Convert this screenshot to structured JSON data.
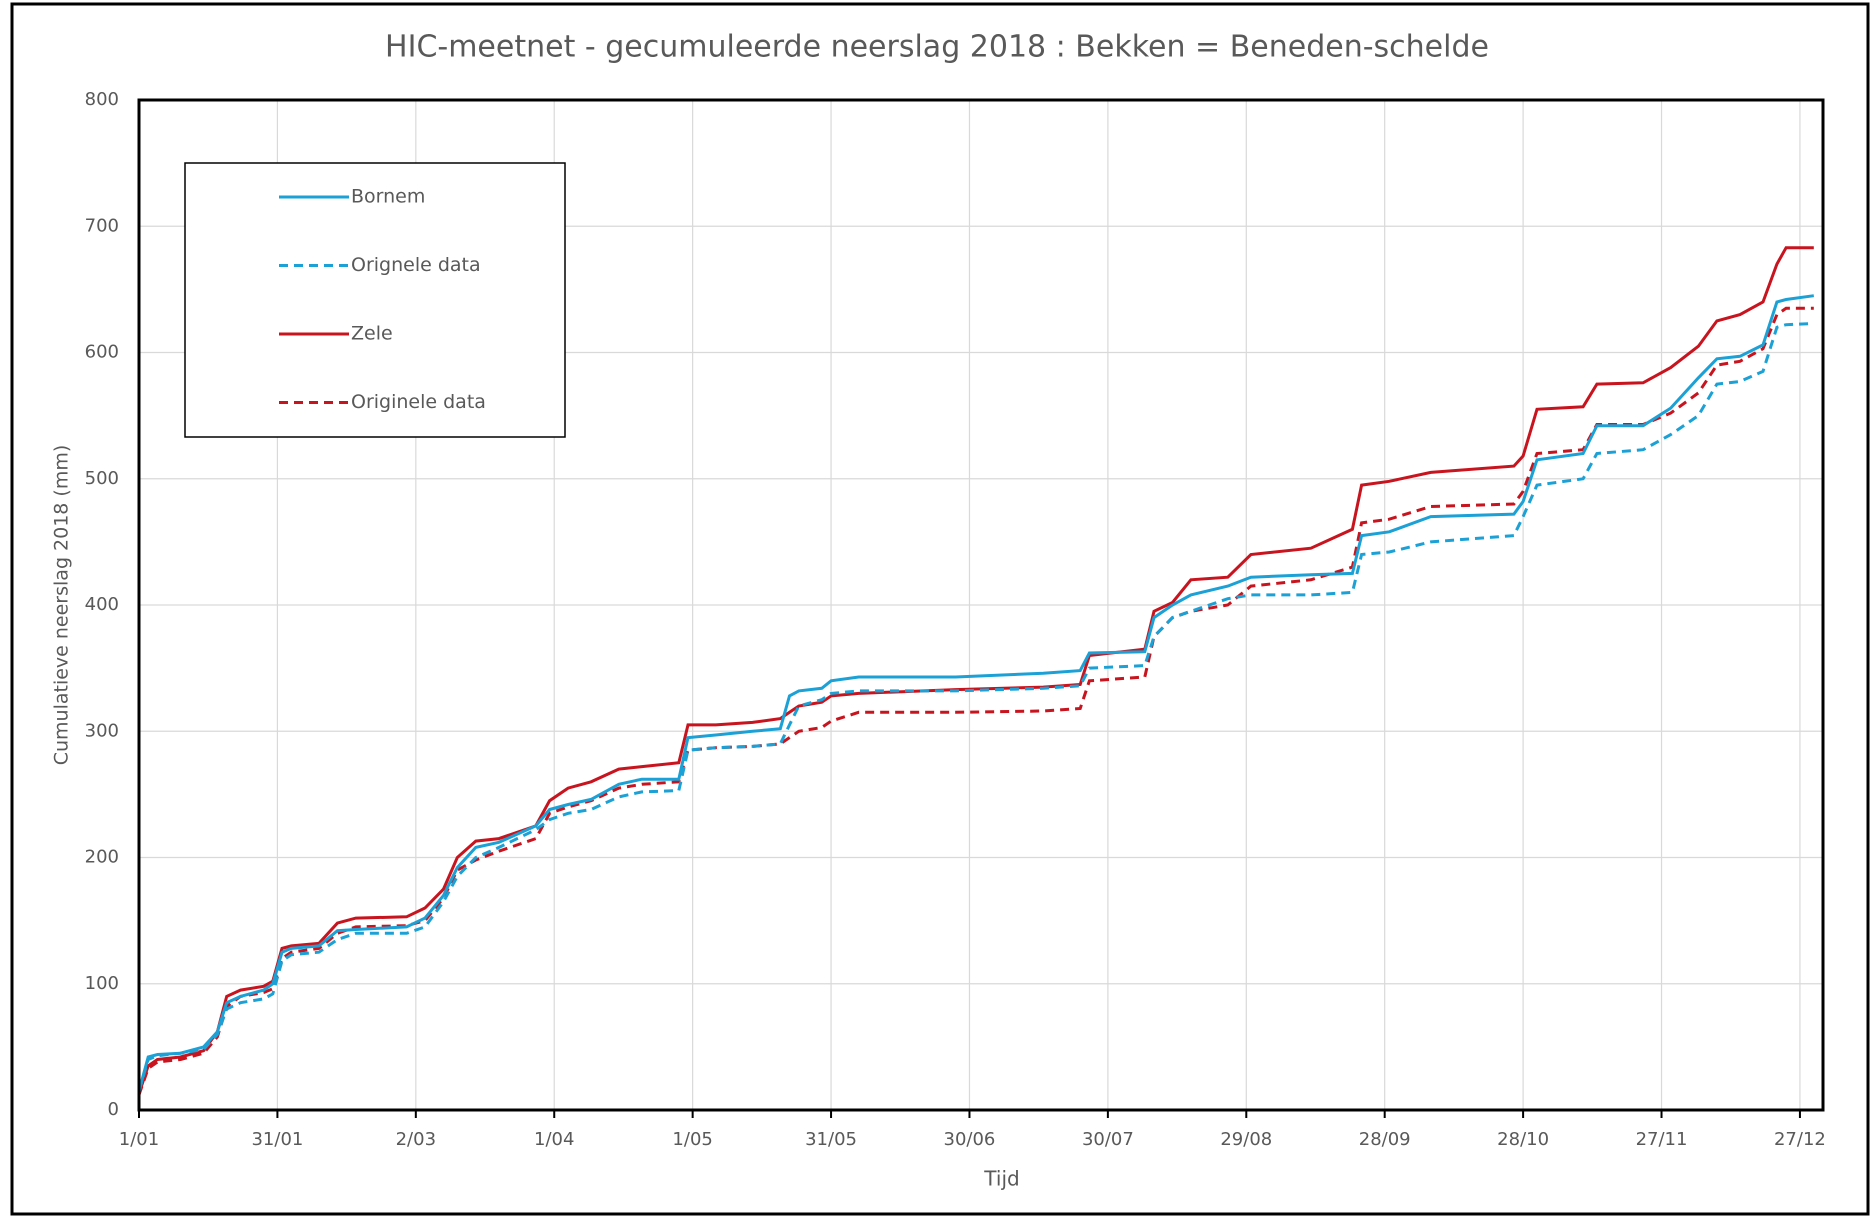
{
  "chart_data": {
    "type": "line",
    "title": "HIC-meetnet - gecumuleerde neerslag 2018 : Bekken = Beneden-schelde",
    "x_label": "Tijd",
    "y_label": "Cumulatieve neerslag 2018 (mm)",
    "xlim": [
      0,
      365
    ],
    "xticks": [
      {
        "value": 0,
        "label": "1/01"
      },
      {
        "value": 30,
        "label": "31/01"
      },
      {
        "value": 60,
        "label": "2/03"
      },
      {
        "value": 90,
        "label": "1/04"
      },
      {
        "value": 120,
        "label": "1/05"
      },
      {
        "value": 150,
        "label": "31/05"
      },
      {
        "value": 180,
        "label": "30/06"
      },
      {
        "value": 210,
        "label": "30/07"
      },
      {
        "value": 240,
        "label": "29/08"
      },
      {
        "value": 270,
        "label": "28/09"
      },
      {
        "value": 300,
        "label": "28/10"
      },
      {
        "value": 330,
        "label": "27/11"
      },
      {
        "value": 360,
        "label": "27/12"
      }
    ],
    "ylim": [
      0,
      800
    ],
    "yticks": [
      0,
      100,
      200,
      300,
      400,
      500,
      600,
      700,
      800
    ],
    "grid": true,
    "legend": "upper left",
    "x": [
      0,
      2,
      4,
      9,
      14,
      17,
      19,
      22,
      27,
      29,
      31,
      33,
      39,
      43,
      47,
      58,
      62,
      66,
      69,
      73,
      78,
      86,
      89,
      93,
      98,
      104,
      109,
      117,
      119,
      125,
      133,
      139,
      141,
      143,
      148,
      150,
      156,
      177,
      196,
      204,
      206,
      218,
      220,
      224,
      228,
      236,
      241,
      254,
      263,
      265,
      271,
      280,
      298,
      300,
      303,
      313,
      316,
      326,
      332,
      338,
      342,
      347,
      352,
      355,
      357,
      363
    ],
    "series": [
      {
        "name": "Bornem",
        "color": "#1ba1d5",
        "line_style": "solid",
        "values": [
          15,
          42,
          44,
          45,
          50,
          62,
          85,
          90,
          95,
          100,
          125,
          128,
          130,
          142,
          143,
          145,
          152,
          170,
          192,
          208,
          212,
          225,
          238,
          242,
          246,
          258,
          262,
          262,
          295,
          297,
          300,
          302,
          328,
          332,
          334,
          340,
          343,
          343,
          346,
          348,
          362,
          363,
          390,
          400,
          408,
          415,
          422,
          424,
          425,
          455,
          458,
          470,
          472,
          482,
          515,
          520,
          542,
          542,
          556,
          580,
          595,
          597,
          606,
          640,
          642,
          645
        ]
      },
      {
        "name": "Orignele data",
        "color": "#1ba1d5",
        "line_style": "dashed",
        "values": [
          15,
          40,
          43,
          45,
          48,
          60,
          80,
          85,
          88,
          92,
          118,
          123,
          125,
          135,
          140,
          140,
          145,
          165,
          185,
          200,
          208,
          222,
          230,
          235,
          238,
          248,
          252,
          253,
          285,
          287,
          288,
          290,
          305,
          320,
          325,
          330,
          332,
          332,
          334,
          336,
          350,
          352,
          375,
          390,
          395,
          405,
          408,
          408,
          410,
          440,
          442,
          450,
          455,
          470,
          495,
          500,
          520,
          523,
          535,
          550,
          575,
          577,
          585,
          620,
          622,
          623
        ]
      },
      {
        "name": "Zele",
        "color": "#c8141e",
        "line_style": "solid",
        "values": [
          13,
          35,
          40,
          42,
          47,
          62,
          90,
          95,
          98,
          102,
          128,
          130,
          132,
          148,
          152,
          153,
          160,
          175,
          200,
          213,
          215,
          225,
          245,
          255,
          260,
          270,
          272,
          275,
          305,
          305,
          307,
          310,
          315,
          320,
          323,
          328,
          330,
          333,
          335,
          337,
          360,
          365,
          395,
          402,
          420,
          422,
          440,
          445,
          460,
          495,
          498,
          505,
          510,
          518,
          555,
          557,
          575,
          576,
          588,
          605,
          625,
          630,
          640,
          670,
          683,
          683
        ]
      },
      {
        "name": "Originele data",
        "color": "#c8141e",
        "line_style": "dashed",
        "values": [
          12,
          33,
          38,
          40,
          45,
          58,
          82,
          90,
          93,
          96,
          120,
          125,
          128,
          140,
          145,
          146,
          150,
          168,
          190,
          198,
          205,
          215,
          235,
          240,
          245,
          255,
          258,
          260,
          285,
          287,
          288,
          290,
          295,
          300,
          303,
          308,
          315,
          315,
          316,
          318,
          340,
          343,
          375,
          390,
          395,
          400,
          415,
          420,
          430,
          465,
          468,
          478,
          480,
          490,
          520,
          523,
          543,
          543,
          552,
          568,
          590,
          593,
          603,
          630,
          635,
          635
        ]
      }
    ]
  }
}
